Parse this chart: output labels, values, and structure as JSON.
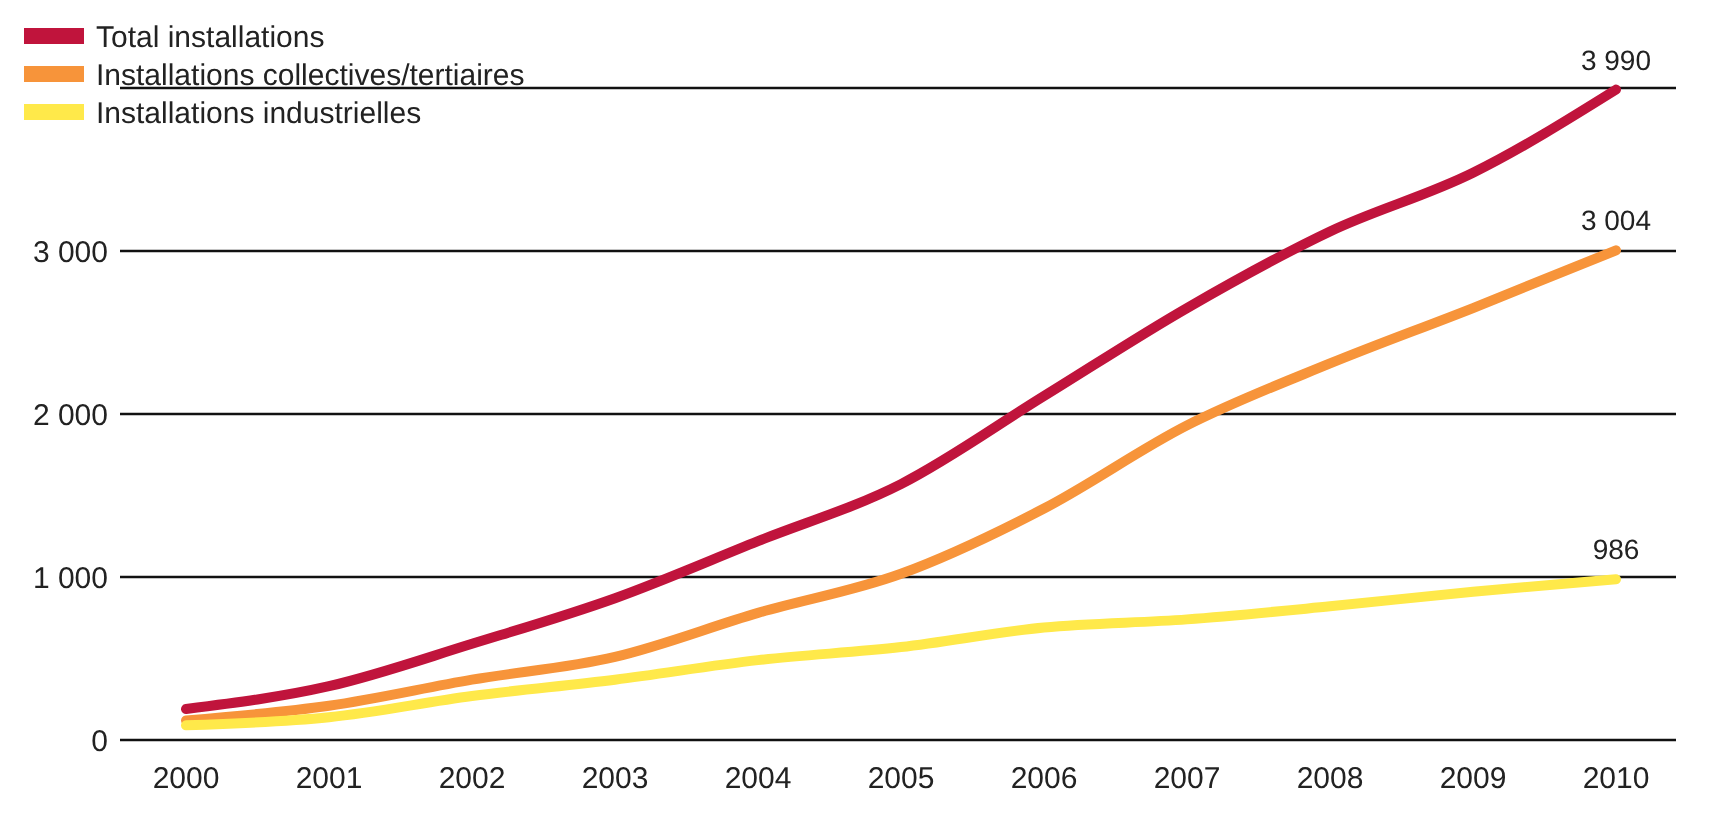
{
  "chart_data": {
    "type": "line",
    "categories": [
      "2000",
      "2001",
      "2002",
      "2003",
      "2004",
      "2005",
      "2006",
      "2007",
      "2008",
      "2009",
      "2010"
    ],
    "series": [
      {
        "name": "Total installations",
        "color": "#c0143c",
        "values": [
          190,
          330,
          590,
          870,
          1220,
          1570,
          2110,
          2650,
          3120,
          3480,
          3990
        ],
        "value_labels": [
          null,
          null,
          null,
          null,
          null,
          null,
          null,
          null,
          null,
          null,
          "3 990"
        ]
      },
      {
        "name": "Installations collectives/tertiaires",
        "color": "#f7943a",
        "values": [
          120,
          210,
          370,
          510,
          780,
          1020,
          1420,
          1930,
          2310,
          2650,
          3004
        ],
        "value_labels": [
          null,
          null,
          null,
          null,
          null,
          null,
          null,
          null,
          null,
          null,
          "3 004"
        ]
      },
      {
        "name": "Installations industrielles",
        "color": "#ffe94a",
        "values": [
          90,
          140,
          270,
          370,
          490,
          570,
          690,
          740,
          820,
          910,
          986
        ],
        "value_labels": [
          null,
          null,
          null,
          null,
          null,
          null,
          null,
          null,
          null,
          null,
          "986"
        ]
      }
    ],
    "ylim": [
      0,
      4000
    ],
    "yticks": [
      0,
      {
        "value": 1000,
        "label": "1 000"
      },
      {
        "value": 2000,
        "label": "2 000"
      },
      {
        "value": 3000,
        "label": "3 000"
      },
      {
        "value": 4000,
        "label": null
      }
    ],
    "grid": "y",
    "legend": "top left",
    "marker": "none",
    "line_style": "solid"
  }
}
